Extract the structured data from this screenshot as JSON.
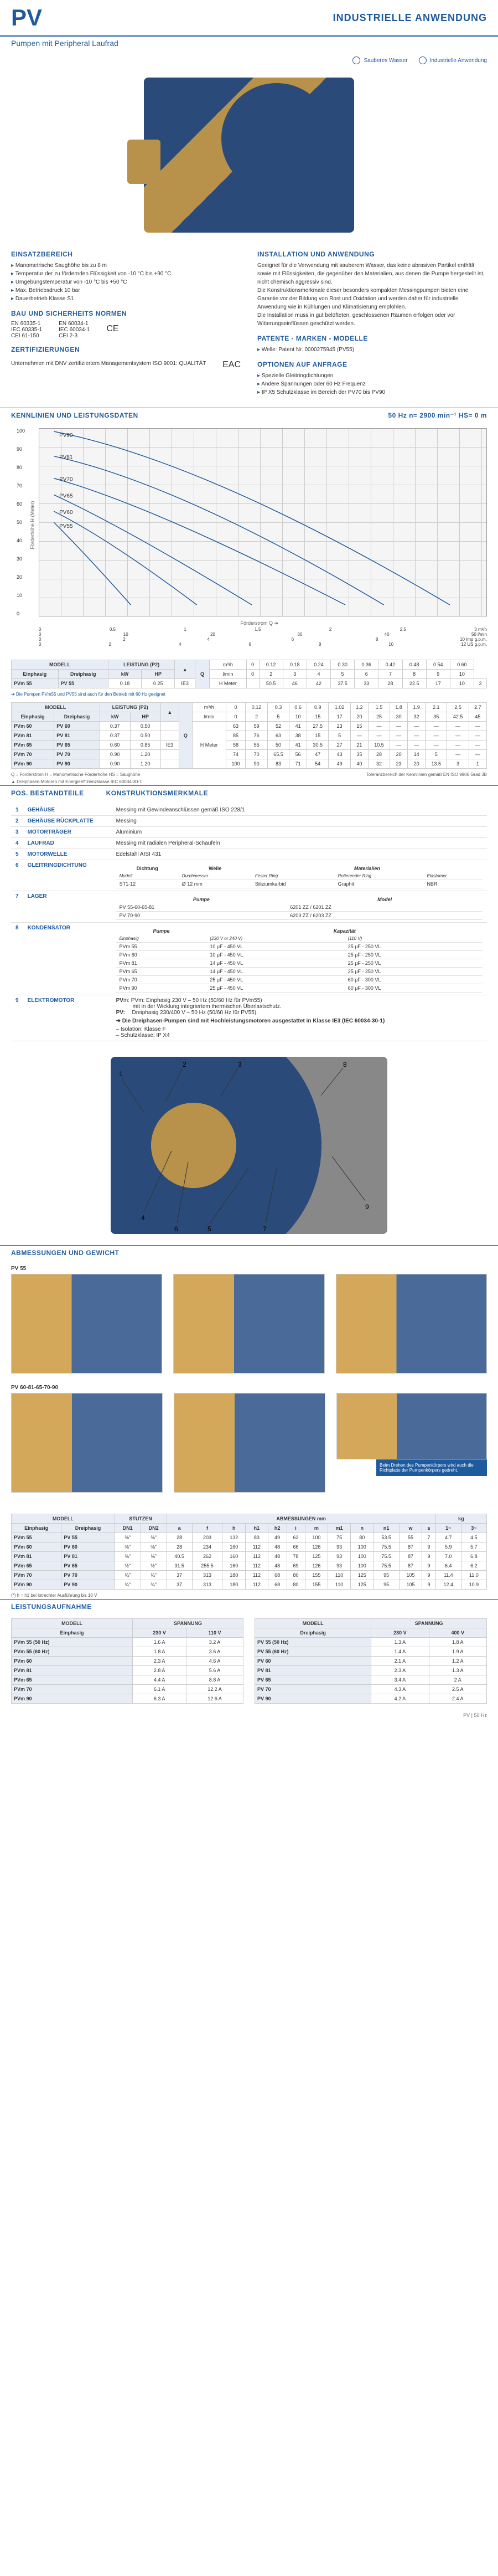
{
  "header": {
    "pv": "PV",
    "industrial": "INDUSTRIELLE ANWENDUNG",
    "subtitle": "Pumpen mit Peripheral Laufrad",
    "icon1": "Sauberes Wasser",
    "icon2": "Industrielle Anwendung"
  },
  "einsatz": {
    "title": "EINSATZBEREICH",
    "items": [
      "Manometrische Saughöhe bis zu 8 m",
      "Temperatur der zu fördernden Flüssigkeit von -10 °C bis +90 °C",
      "Umgebungstemperatur von -10 °C bis +50 °C",
      "Max. Betriebsdruck 10 bar",
      "Dauerbetrieb Klasse S1"
    ]
  },
  "bau": {
    "title": "BAU UND SICHERHEITS NORMEN",
    "l1": "EN 60335-1",
    "l2": "IEC 60335-1",
    "l3": "CEI 61-150",
    "r1": "EN 60034-1",
    "r2": "IEC 60034-1",
    "r3": "CEI 2-3"
  },
  "zert": {
    "title": "ZERTIFIZIERUNGEN",
    "text": "Unternehmen mit DNV zertifiziertem Managementsystem ISO 9001: QUALITÄT"
  },
  "install": {
    "title": "INSTALLATION UND ANWENDUNG",
    "text": "Geeignet für die Verwendung mit sauberem Wasser, das keine abrasiven Partikel enthält sowie mit Flüssigkeiten, die gegenüber den Materialien, aus denen die Pumpe hergestellt ist, nicht chemisch aggressiv sind.\nDie Konstruktionsmerkmale dieser besonders kompakten Messingpumpen bieten eine Garantie vor der Bildung von Rost und Oxidation und werden daher für industrielle Anwendung wie in Kühlungen und Klimatisierung empfohlen.\nDie Installation muss in gut belüfteten, geschlossenen Räumen erfolgen oder vor Witterungseinflüssen geschützt werden."
  },
  "patente": {
    "title": "PATENTE - MARKEN - MODELLE",
    "items": [
      "Welle: Patent Nr. 0000275945 (PV55)"
    ]
  },
  "optionen": {
    "title": "OPTIONEN AUF ANFRAGE",
    "items": [
      "Spezielle Gleitringdichtungen",
      "Andere Spannungen oder 60 Hz Frequenz",
      "IP X5 Schutzklasse im Bereich der PV70 bis PV90"
    ]
  },
  "kennlinien": {
    "title": "KENNLINIEN UND LEISTUNGSDATEN",
    "info": "50 Hz    n= 2900 min⁻¹    HS= 0 m",
    "ylabel": "Förderhöhe  H  (Meter)",
    "xlabel": "Förderstrom  Q  ➜",
    "ylim": [
      0,
      100
    ],
    "xlim_m3h": [
      0,
      3
    ],
    "curves": [
      "PV90",
      "PV81",
      "PV70",
      "PV65",
      "PV60",
      "PV55"
    ],
    "curve_color": "#1e5a9e",
    "grid_color": "#cccccc",
    "x_units": [
      "m³/h",
      "l/min",
      "Imp g.p.m.",
      "US g.p.m."
    ]
  },
  "table1": {
    "head_model": "MODELL",
    "head_einph": "Einphasig",
    "head_dreiph": "Dreiphasig",
    "head_leistung": "LEISTUNG (P2)",
    "head_kw": "kW",
    "head_hp": "HP",
    "head_q": "Q",
    "q_unit1": "m³/h",
    "q_unit2": "l/min",
    "q_vals_m3h": [
      "0",
      "0.12",
      "0.18",
      "0.24",
      "0.30",
      "0.36",
      "0.42",
      "0.48",
      "0.54",
      "0.60"
    ],
    "q_vals_lmin": [
      "0",
      "2",
      "3",
      "4",
      "5",
      "6",
      "7",
      "8",
      "9",
      "10"
    ],
    "rows": [
      {
        "e": "PVm 55",
        "d": "PV 55",
        "kw": "0.18",
        "hp": "0.25",
        "ie": "IE3",
        "h": "H Meter",
        "vals": [
          "50.5",
          "46",
          "42",
          "37.5",
          "33",
          "28",
          "22.5",
          "17",
          "10",
          "3"
        ]
      }
    ],
    "note": "➜ Die Pumpen PVm55 und PV55 sind auch für den Betrieb mit 60 Hz geeignet"
  },
  "table2": {
    "q_vals_m3h": [
      "0",
      "0.12",
      "0.3",
      "0.6",
      "0.9",
      "1.02",
      "1.2",
      "1.5",
      "1.8",
      "1.9",
      "2.1",
      "2.5",
      "2.7"
    ],
    "q_vals_lmin": [
      "0",
      "2",
      "5",
      "10",
      "15",
      "17",
      "20",
      "25",
      "30",
      "32",
      "35",
      "42.5",
      "45"
    ],
    "rows": [
      {
        "e": "PVm 60",
        "d": "PV 60",
        "kw": "0.37",
        "hp": "0.50",
        "vals": [
          "63",
          "59",
          "52",
          "41",
          "27.5",
          "23",
          "15",
          "—",
          "—",
          "—",
          "—",
          "—",
          "—"
        ]
      },
      {
        "e": "PVm 81",
        "d": "PV 81",
        "kw": "0.37",
        "hp": "0.50",
        "vals": [
          "85",
          "76",
          "63",
          "38",
          "15",
          "5",
          "—",
          "—",
          "—",
          "—",
          "—",
          "—",
          "—"
        ]
      },
      {
        "e": "PVm 65",
        "d": "PV 65",
        "kw": "0.60",
        "hp": "0.85",
        "ie": "IE3",
        "h": "H Meter",
        "vals": [
          "58",
          "55",
          "50",
          "41",
          "30.5",
          "27",
          "21",
          "10.5",
          "—",
          "—",
          "—",
          "—",
          "—"
        ]
      },
      {
        "e": "PVm 70",
        "d": "PV 70",
        "kw": "0.90",
        "hp": "1.20",
        "vals": [
          "74",
          "70",
          "65.5",
          "56",
          "47",
          "43",
          "35",
          "28",
          "20",
          "14",
          "5",
          "—",
          "—"
        ]
      },
      {
        "e": "PVm 90",
        "d": "PV 90",
        "kw": "0.90",
        "hp": "1.20",
        "vals": [
          "100",
          "90",
          "83",
          "71",
          "54",
          "49",
          "40",
          "32",
          "23",
          "20",
          "13.5",
          "3",
          "1"
        ]
      }
    ],
    "legend": "Q = Förderstrom   H = Manometrische Förderhöhe   HS = Saughöhe",
    "legend_right": "Toleranzbereich der Kennlinien gemäß EN ISO 9906 Grad 3B",
    "note": "▲  Dreiphasen-Motoren mit Energieeffizienzklasse IEC 60034-30-1"
  },
  "parts": {
    "bar_title_l": "POS.  BESTANDTEILE",
    "bar_title_r": "KONSTRUKTIONSMERKMALE",
    "rows": [
      {
        "n": "1",
        "name": "GEHÄUSE",
        "desc": "Messing mit Gewindeanschlüssen gemäß ISO 228/1"
      },
      {
        "n": "2",
        "name": "GEHÄUSE RÜCKPLATTE",
        "desc": "Messing"
      },
      {
        "n": "3",
        "name": "MOTORTRÄGER",
        "desc": "Aluminium"
      },
      {
        "n": "4",
        "name": "LAUFRAD",
        "desc": "Messing mit radialen Peripheral-Schaufeln"
      },
      {
        "n": "5",
        "name": "MOTORWELLE",
        "desc": "Edelstahl AISI 431"
      }
    ],
    "seal": {
      "n": "6",
      "name": "GLEITRINGDICHTUNG",
      "h1": "Dichtung",
      "h2": "Welle",
      "h3": "Materialien",
      "sh1": "Modell",
      "sh2": "Durchmesser",
      "sh3": "Fester Ring",
      "sh4": "Rotierender Ring",
      "sh5": "Elastomer",
      "r": [
        "ST1-12",
        "Ø 12 mm",
        "Siliziumkarbid",
        "Graphit",
        "NBR"
      ]
    },
    "lager": {
      "n": "7",
      "name": "LAGER",
      "h1": "Pumpe",
      "h2": "Model",
      "r1": [
        "PV 55-60-65-81",
        "6201 ZZ / 6201 ZZ"
      ],
      "r2": [
        "PV 70-90",
        "6203 ZZ / 6203 ZZ"
      ]
    },
    "kond": {
      "n": "8",
      "name": "KONDENSATOR",
      "h1": "Pumpe",
      "h2": "Kapazität",
      "sh1": "Einphasig",
      "sh2": "(230 V or 240 V)",
      "sh3": "(110 V)",
      "rows": [
        [
          "PVm 55",
          "10 μF - 450 VL",
          "25 μF - 250 VL"
        ],
        [
          "PVm 60",
          "10 μF - 450 VL",
          "25 μF - 250 VL"
        ],
        [
          "PVm 81",
          "14 μF - 450 VL",
          "25 μF - 250 VL"
        ],
        [
          "PVm 65",
          "14 μF - 450 VL",
          "25 μF - 250 VL"
        ],
        [
          "PVm 70",
          "25 μF - 450 VL",
          "60 μF - 300 VL"
        ],
        [
          "PVm 90",
          "25 μF - 450 VL",
          "60 μF - 300 VL"
        ]
      ]
    },
    "motor": {
      "n": "9",
      "name": "ELEKTROMOTOR",
      "l1": "PVm: Einphasig 230 V – 50 Hz (50/60 Hz für PVm55)",
      "l1b": "mit in der Wicklung integriertem thermischen Überlastschutz.",
      "l1c": "Dreiphasig 230/400 V – 50 Hz (50/60 Hz für PV55).",
      "l2": "PV:",
      "bold": "➜ Die Dreiphasen-Pumpen sind mit Hochleistungsmotoren ausgestattet in Klasse IE3 (IEC 60034-30-1)",
      "l3": "– Isolation: Klasse F",
      "l4": "– Schutzklasse: IP X4"
    }
  },
  "abm": {
    "title": "ABMESSUNGEN UND GEWICHT",
    "g1": "PV 55",
    "g2": "PV 60-81-65-70-90",
    "note": "Beim Drehen des Pumpenkörpers wird auch die Richtplatte der Pumpenkörpers gedreht."
  },
  "dimtable": {
    "h_model": "MODELL",
    "h_stutzen": "STUTZEN",
    "h_abm": "ABMESSUNGEN mm",
    "h_kg": "kg",
    "h_einph": "Einphasig",
    "h_dreiph": "Dreiphasig",
    "cols": [
      "DN1",
      "DN2",
      "a",
      "f",
      "h",
      "h1",
      "h2",
      "i",
      "m",
      "m1",
      "n",
      "n1",
      "w",
      "s"
    ],
    "rows": [
      [
        "PVm 55",
        "PV 55",
        "⅜\"",
        "⅜\"",
        "28",
        "203",
        "132",
        "83",
        "49",
        "62",
        "100",
        "75",
        "80",
        "53.5",
        "55",
        "7",
        "4.7",
        "4.5"
      ],
      [
        "PVm 60",
        "PV 60",
        "⅜\"",
        "⅜\"",
        "28",
        "234",
        "160",
        "112",
        "48",
        "66",
        "126",
        "93",
        "100",
        "75.5",
        "87",
        "9",
        "5.9",
        "5.7"
      ],
      [
        "PVm 81",
        "PV 81",
        "⅜\"",
        "⅜\"",
        "40.5",
        "262",
        "160",
        "112",
        "48",
        "78",
        "125",
        "93",
        "100",
        "75.5",
        "87",
        "9",
        "7.0",
        "6.8"
      ],
      [
        "PVm 65",
        "PV 65",
        "½\"",
        "½\"",
        "31.5",
        "255.5",
        "160",
        "112",
        "48",
        "69",
        "126",
        "93",
        "100",
        "75.5",
        "87",
        "9",
        "6.4",
        "6.2"
      ],
      [
        "PVm 70",
        "PV 70",
        "¾\"",
        "¾\"",
        "37",
        "313",
        "180",
        "112",
        "68",
        "80",
        "155",
        "110",
        "125",
        "95",
        "105",
        "9",
        "11.4",
        "11.0"
      ],
      [
        "PVm 90",
        "PV 90",
        "¾\"",
        "¾\"",
        "37",
        "313",
        "180",
        "112",
        "68",
        "80",
        "155",
        "110",
        "125",
        "95",
        "105",
        "9",
        "12.4",
        "10.9"
      ]
    ],
    "note": "(*) h = h1 bei lotrechter Ausführung bis 10 V"
  },
  "leistung": {
    "title": "LEISTUNGSAUFNAHME",
    "h_model": "MODELL",
    "h_spannung": "SPANNUNG",
    "h_einph": "Einphasig",
    "h_dreiph": "Dreiphasig",
    "v1": "230 V",
    "v2": "110 V",
    "v3": "230 V",
    "v4": "400 V",
    "rows_l": [
      [
        "PVm 55 (50 Hz)",
        "1.6 A",
        "3.2 A"
      ],
      [
        "PVm 55 (60 Hz)",
        "1.8 A",
        "3.6 A"
      ],
      [
        "PVm 60",
        "2.3 A",
        "4.6 A"
      ],
      [
        "PVm 81",
        "2.8 A",
        "5.6 A"
      ],
      [
        "PVm 65",
        "4.4 A",
        "8.8 A"
      ],
      [
        "PVm 70",
        "6.1 A",
        "12.2 A"
      ],
      [
        "PVm 90",
        "6.3 A",
        "12.6 A"
      ]
    ],
    "rows_r": [
      [
        "PV 55 (50 Hz)",
        "1.3 A",
        "1.8 A"
      ],
      [
        "PV 55 (60 Hz)",
        "1.4 A",
        "1.9 A"
      ],
      [
        "PV 60",
        "2.1 A",
        "1.2 A"
      ],
      [
        "PV 81",
        "2.3 A",
        "1.3 A"
      ],
      [
        "PV 65",
        "3.4 A",
        "2 A"
      ],
      [
        "PV 70",
        "4.3 A",
        "2.5 A"
      ],
      [
        "PV 90",
        "4.2 A",
        "2.4 A"
      ]
    ]
  },
  "footer": "PV  |  50 Hz",
  "colors": {
    "primary": "#1e5a9e",
    "brass": "#b8914a",
    "steel": "#2a4a7a"
  }
}
